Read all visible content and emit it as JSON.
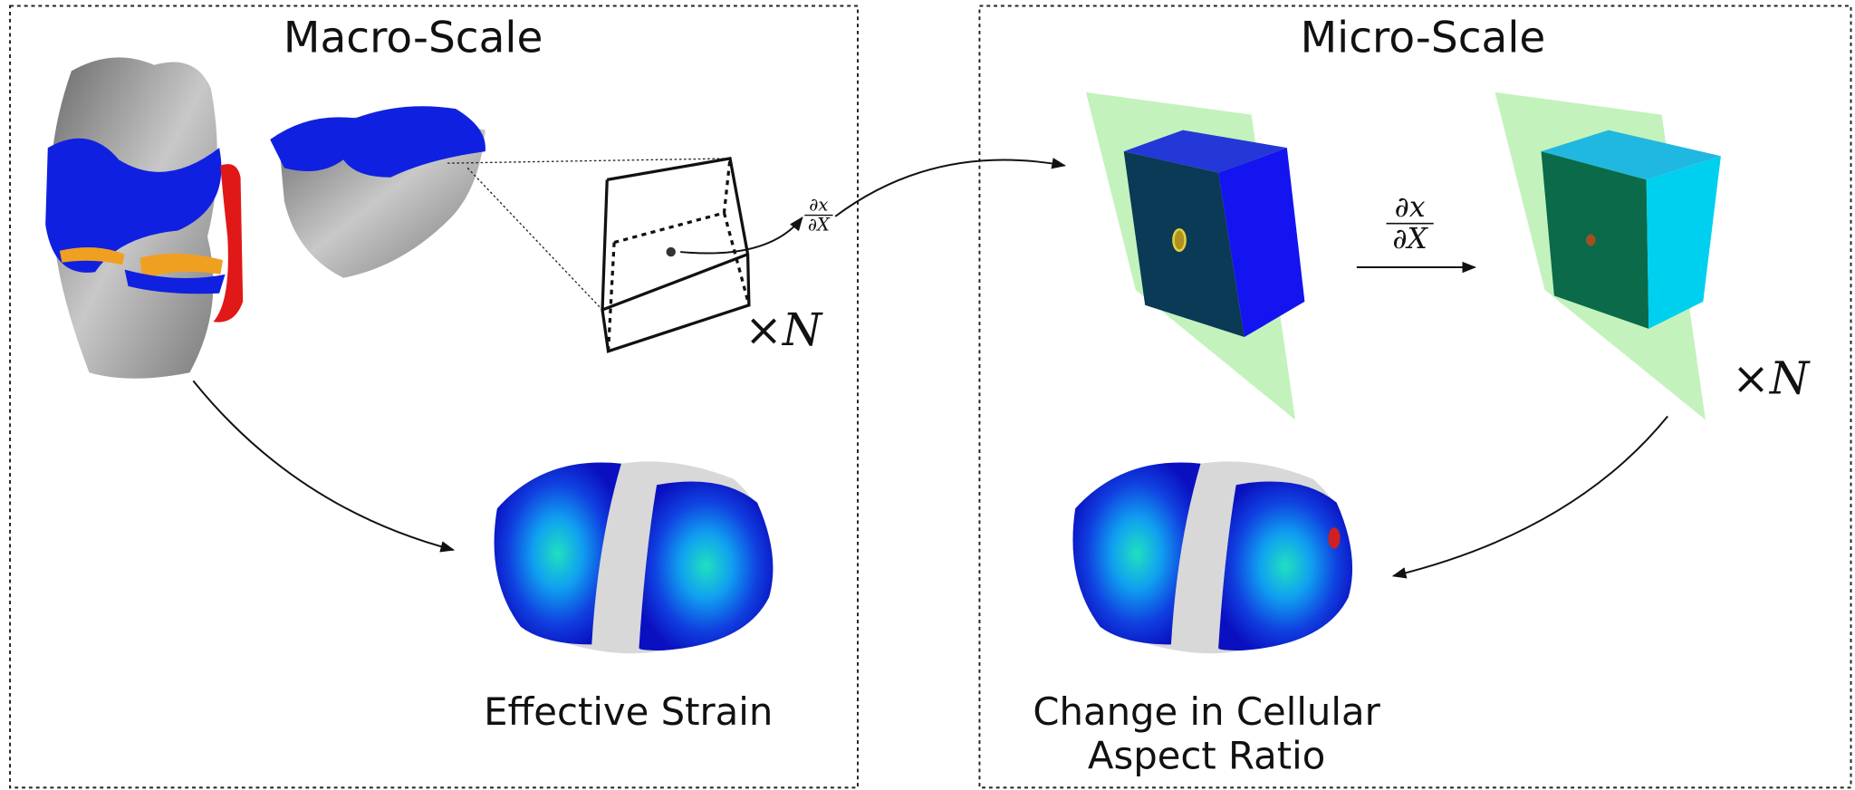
{
  "panels": [
    {
      "title": "Macro-Scale",
      "multiplier": "×N",
      "derivative": {
        "numerator": "∂x",
        "denominator": "∂X"
      },
      "caption": [
        "Effective Strain"
      ]
    },
    {
      "title": "Micro-Scale",
      "multiplier": "×N",
      "derivative": {
        "numerator": "∂x",
        "denominator": "∂X"
      },
      "caption": [
        "Change in Cellular",
        "Aspect Ratio"
      ]
    }
  ]
}
